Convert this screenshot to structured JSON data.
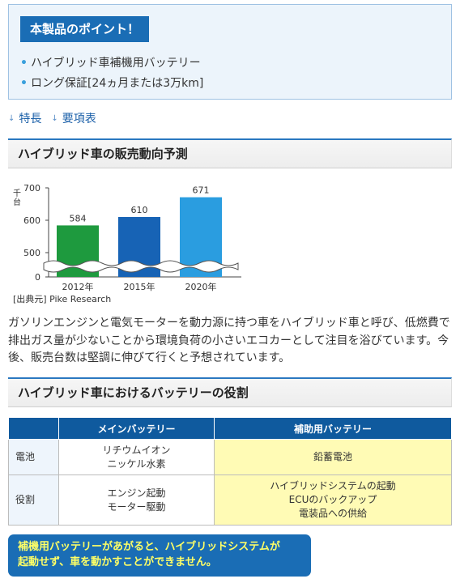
{
  "points": {
    "title": "本製品のポイント！",
    "items": [
      "ハイブリッド車補機用バッテリー",
      "ロング保証[24ヵ月または3万km]"
    ]
  },
  "anchors": [
    {
      "label": "特長"
    },
    {
      "label": "要項表"
    }
  ],
  "section1": {
    "title": "ハイブリッド車の販売動向予測"
  },
  "chart_data": {
    "type": "bar",
    "categories": [
      "2012年",
      "2015年",
      "2020年"
    ],
    "values": [
      584,
      610,
      671
    ],
    "value_labels": [
      "584",
      "610",
      "671"
    ],
    "ylabel": "千台",
    "yticks": [
      "700",
      "600",
      "500",
      "0"
    ],
    "ylim": [
      0,
      700
    ],
    "axis_break": true,
    "source": "[出典元] Pike Research",
    "colors": [
      "#1e9a3e",
      "#1763b5",
      "#2a9de0"
    ]
  },
  "paragraph": "ガソリンエンジンと電気モーターを動力源に持つ車をハイブリッド車と呼び、低燃費で排出ガス量が少ないことから環境負荷の小さいエコカーとして注目を浴びています。今後、販売台数は堅調に伸びて行くと予想されています。",
  "section2": {
    "title": "ハイブリッド車におけるバッテリーの役割"
  },
  "table": {
    "headers": [
      "",
      "メインバッテリー",
      "補助用バッテリー"
    ],
    "rows": [
      {
        "label": "電池",
        "main": [
          "リチウムイオン",
          "ニッケル水素"
        ],
        "aux": [
          "鉛蓄電池"
        ]
      },
      {
        "label": "役割",
        "main": [
          "エンジン起動",
          "モーター駆動"
        ],
        "aux": [
          "ハイブリッドシステムの起動",
          "ECUのバックアップ",
          "電装品への供給"
        ]
      }
    ]
  },
  "notice": {
    "line1": "補機用バッテリーがあがると、ハイブリッドシステムが",
    "line2": "起動せず、車を動かすことができません。"
  }
}
